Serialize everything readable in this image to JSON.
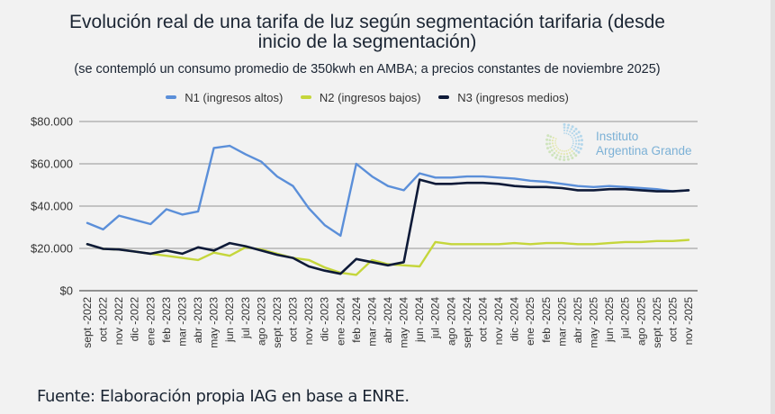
{
  "title_line1": "Evolución real de una tarifa de luz según segmentación tarifaria (desde",
  "title_line2": "inicio de la segmentación)",
  "subtitle": "(se contempló un consumo promedio de 350kwh en AMBA; a precios constantes de noviembre 2025)",
  "footer": "Fuente: Elaboración propia IAG en base a ENRE.",
  "logo": {
    "line1": "Instituto",
    "line2": "Argentina Grande",
    "color": "#7cb1d6"
  },
  "chart_data": {
    "type": "line",
    "title": "Evolución real de una tarifa de luz según segmentación tarifaria (desde inicio de la segmentación)",
    "subtitle": "(se contempló un consumo promedio de 350kwh en AMBA; a precios constantes de noviembre 2025)",
    "xlabel": "",
    "ylabel": "",
    "ylim": [
      0,
      80000
    ],
    "yticks": [
      0,
      20000,
      40000,
      60000,
      80000
    ],
    "ytick_labels": [
      "$0",
      "$20.000",
      "$40.000",
      "$60.000",
      "$80.000"
    ],
    "grid": true,
    "legend_position": "top-center",
    "x": [
      "sept -2022",
      "oct -2022",
      "nov -2022",
      "dic -2022",
      "ene -2023",
      "feb -2023",
      "mar -2023",
      "abr -2023",
      "may -2023",
      "jun -2023",
      "jul -2023",
      "ago -2023",
      "sept -2023",
      "oct -2023",
      "nov -2023",
      "dic -2023",
      "ene -2024",
      "feb -2024",
      "mar -2024",
      "abr -2024",
      "may -2024",
      "jun -2024",
      "jul -2024",
      "ago -2024",
      "sept -2024",
      "oct -2024",
      "nov -2024",
      "dic -2024",
      "ene -2025",
      "feb -2025",
      "mar -2025",
      "abr -2025",
      "may -2025",
      "jun -2025",
      "jul -2025",
      "ago -2025",
      "sept -2025",
      "oct -2025",
      "nov -2025"
    ],
    "series": [
      {
        "name": "N1 (ingresos altos)",
        "color": "#5b8fd9",
        "values": [
          32000,
          29000,
          35500,
          33500,
          31500,
          38500,
          36000,
          37500,
          67500,
          68500,
          64500,
          61000,
          54000,
          49500,
          39000,
          31000,
          26000,
          60000,
          54000,
          49500,
          47500,
          55500,
          53500,
          53500,
          54000,
          54000,
          53500,
          53000,
          52000,
          51500,
          50500,
          49500,
          49000,
          49500,
          49000,
          48500,
          48000,
          47000,
          47500
        ]
      },
      {
        "name": "N2 (ingresos bajos)",
        "color": "#c5d63b",
        "values": [
          22000,
          19800,
          19500,
          18500,
          17500,
          16500,
          15500,
          14500,
          18000,
          16500,
          20500,
          19500,
          17500,
          15500,
          14500,
          11000,
          8500,
          7500,
          14500,
          12500,
          12000,
          11500,
          23000,
          22000,
          22000,
          22000,
          22000,
          22500,
          22000,
          22500,
          22500,
          22000,
          22000,
          22500,
          23000,
          23000,
          23500,
          23500,
          24000
        ]
      },
      {
        "name": "N3 (ingresos medios)",
        "color": "#0e1a38",
        "values": [
          22000,
          19800,
          19500,
          18500,
          17500,
          19000,
          17500,
          20500,
          19000,
          22500,
          21000,
          19000,
          17000,
          15500,
          11500,
          9500,
          8000,
          15000,
          13500,
          12000,
          13500,
          52500,
          50500,
          50500,
          51000,
          51000,
          50500,
          49500,
          49000,
          49000,
          48500,
          47500,
          47500,
          48000,
          48000,
          47500,
          47000,
          47000,
          47500
        ]
      }
    ]
  }
}
